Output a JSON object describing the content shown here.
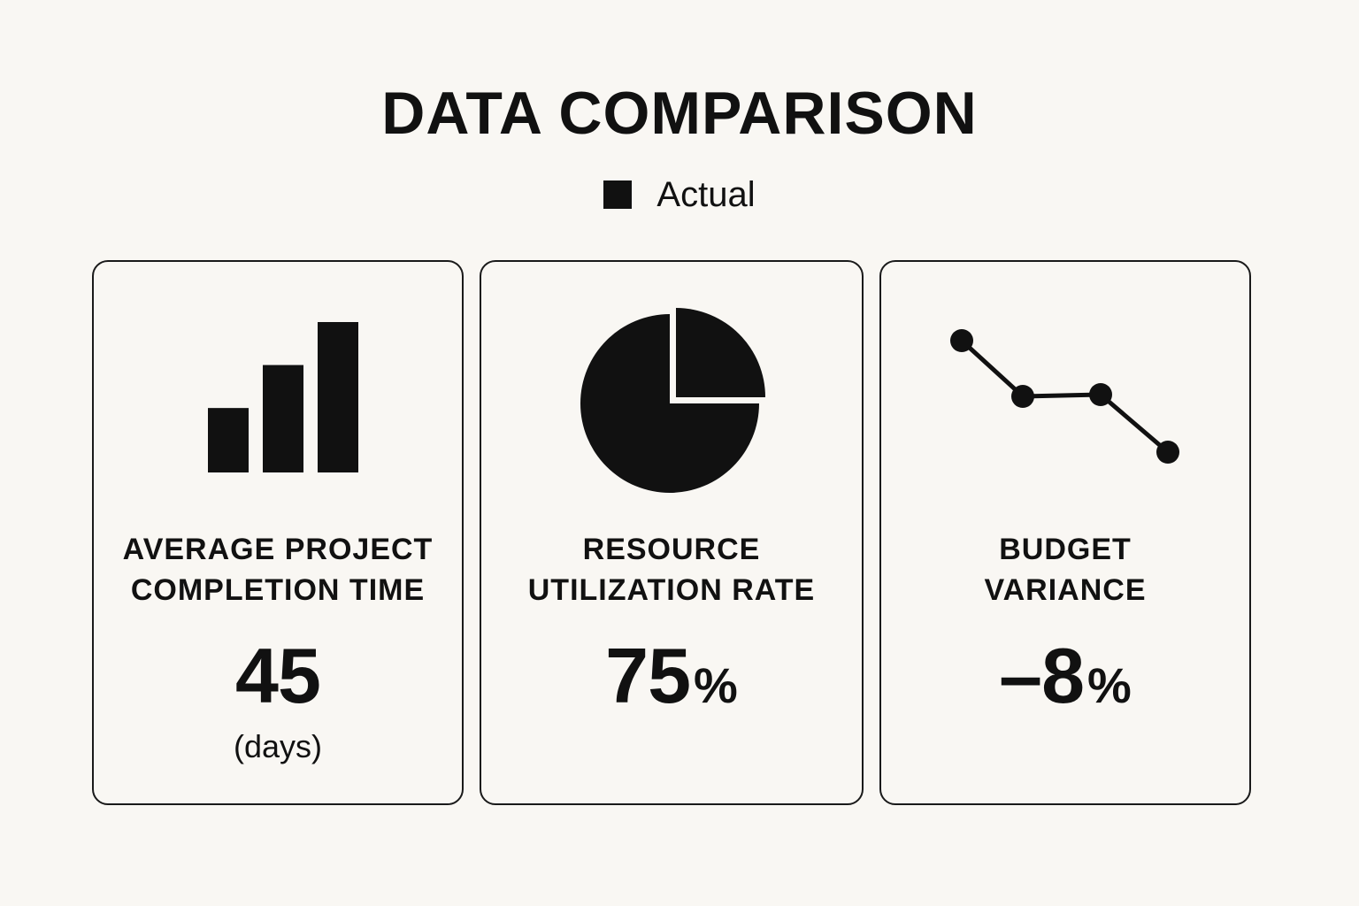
{
  "title": "DATA COMPARISON",
  "legend": {
    "label": "Actual",
    "color": "#111111"
  },
  "cards": [
    {
      "label_line1": "AVERAGE PROJECT",
      "label_line2": "COMPLETION TIME",
      "value": "45",
      "unit": "(days)",
      "icon": "bar-chart-icon"
    },
    {
      "label_line1": "RESOURCE",
      "label_line2": "UTILIZATION RATE",
      "value": "75",
      "suffix": "%",
      "icon": "pie-chart-icon"
    },
    {
      "label_line1": "BUDGET",
      "label_line2": "VARIANCE",
      "value": "–8",
      "suffix": "%",
      "icon": "line-chart-icon"
    }
  ],
  "chart_data": [
    {
      "type": "bar",
      "values": [
        3,
        5,
        7
      ]
    },
    {
      "type": "pie",
      "values": [
        75,
        25
      ]
    },
    {
      "type": "line",
      "values": [
        4,
        2,
        2,
        0
      ]
    }
  ]
}
